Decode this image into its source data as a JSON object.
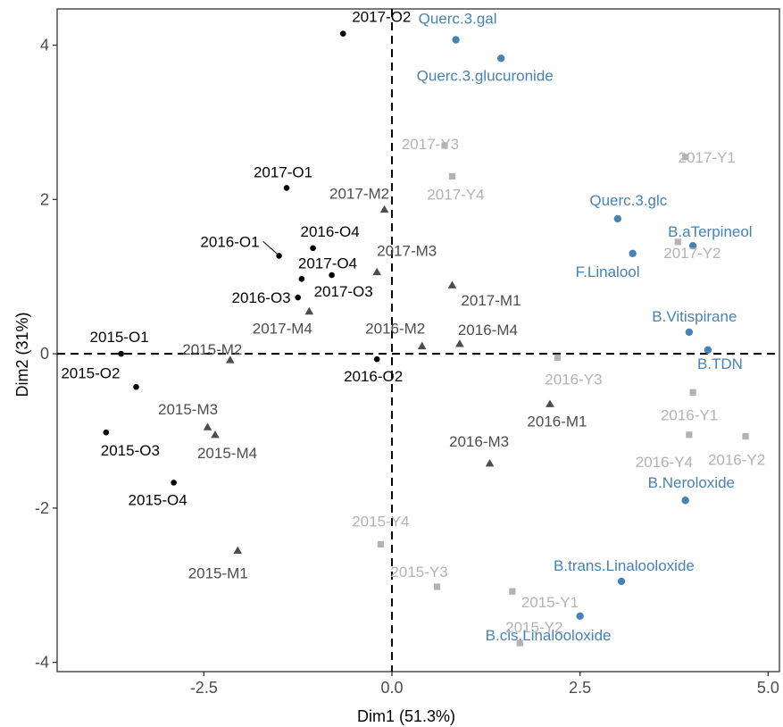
{
  "chart_data": {
    "type": "scatter",
    "title": "",
    "xlabel": "Dim1 (51.3%)",
    "ylabel": "Dim2 (31%)",
    "xlim": [
      -4.45,
      5.15
    ],
    "ylim": [
      -4.12,
      4.47
    ],
    "xticks": [
      -2.5,
      0,
      2.5,
      5
    ],
    "xtick_labels": [
      "-2.5",
      "0.0",
      "2.5",
      "5.0"
    ],
    "yticks": [
      -4,
      -2,
      0,
      2,
      4
    ],
    "ytick_labels": [
      "-4",
      "-2",
      "0",
      "2",
      "4"
    ],
    "reference_lines": {
      "x": 0,
      "y": 0,
      "style": "dashed"
    },
    "grid": false,
    "colors": {
      "O": "#000000",
      "M": "#4d4d4d",
      "Y": "#b3b3b3",
      "var": "#4682b4"
    },
    "series": [
      {
        "group": "O",
        "marker": "circle",
        "points": [
          {
            "label": "2017-O2",
            "x": -0.65,
            "y": 4.15
          },
          {
            "label": "2017-O1",
            "x": -1.4,
            "y": 2.15
          },
          {
            "label": "2016-O1",
            "x": -1.5,
            "y": 1.27
          },
          {
            "label": "2016-O4",
            "x": -1.05,
            "y": 1.37
          },
          {
            "label": "2017-O4",
            "x": -1.2,
            "y": 0.97
          },
          {
            "label": "2017-O3",
            "x": -0.8,
            "y": 1.02
          },
          {
            "label": "2016-O3",
            "x": -1.25,
            "y": 0.73
          },
          {
            "label": "2016-O2",
            "x": -0.2,
            "y": -0.07
          },
          {
            "label": "2015-O1",
            "x": -3.6,
            "y": 0.0
          },
          {
            "label": "2015-O2",
            "x": -3.4,
            "y": -0.43
          },
          {
            "label": "2015-O3",
            "x": -3.8,
            "y": -1.02
          },
          {
            "label": "2015-O4",
            "x": -2.9,
            "y": -1.67
          }
        ]
      },
      {
        "group": "M",
        "marker": "triangle",
        "points": [
          {
            "label": "2017-M2",
            "x": -0.1,
            "y": 1.87
          },
          {
            "label": "2017-M3",
            "x": -0.2,
            "y": 1.06
          },
          {
            "label": "2017-M1",
            "x": 0.8,
            "y": 0.89
          },
          {
            "label": "2017-M4",
            "x": -1.1,
            "y": 0.55
          },
          {
            "label": "2016-M2",
            "x": 0.4,
            "y": 0.1
          },
          {
            "label": "2016-M4",
            "x": 0.9,
            "y": 0.13
          },
          {
            "label": "2015-M2",
            "x": -2.15,
            "y": -0.08
          },
          {
            "label": "2016-M1",
            "x": 2.1,
            "y": -0.65
          },
          {
            "label": "2015-M3",
            "x": -2.45,
            "y": -0.95
          },
          {
            "label": "2015-M4",
            "x": -2.35,
            "y": -1.05
          },
          {
            "label": "2016-M3",
            "x": 1.3,
            "y": -1.42
          },
          {
            "label": "2015-M1",
            "x": -2.05,
            "y": -2.55
          }
        ]
      },
      {
        "group": "Y",
        "marker": "square",
        "points": [
          {
            "label": "2017-Y3",
            "x": 0.7,
            "y": 2.7
          },
          {
            "label": "2017-Y4",
            "x": 0.8,
            "y": 2.3
          },
          {
            "label": "2017-Y1",
            "x": 3.9,
            "y": 2.55
          },
          {
            "label": "2017-Y2",
            "x": 3.8,
            "y": 1.45
          },
          {
            "label": "2016-Y3",
            "x": 2.2,
            "y": -0.05
          },
          {
            "label": "2016-Y1",
            "x": 4.0,
            "y": -0.5
          },
          {
            "label": "2016-Y4",
            "x": 3.95,
            "y": -1.05
          },
          {
            "label": "2016-Y2",
            "x": 4.7,
            "y": -1.07
          },
          {
            "label": "2015-Y4",
            "x": -0.15,
            "y": -2.47
          },
          {
            "label": "2015-Y3",
            "x": 0.6,
            "y": -3.02
          },
          {
            "label": "2015-Y1",
            "x": 1.6,
            "y": -3.08
          },
          {
            "label": "2015-Y2",
            "x": 1.7,
            "y": -3.75
          }
        ]
      },
      {
        "group": "variables",
        "marker": "circle",
        "points": [
          {
            "label": "Querc.3.gal",
            "x": 0.85,
            "y": 4.07
          },
          {
            "label": "Querc.3.glucuronide",
            "x": 1.45,
            "y": 3.83
          },
          {
            "label": "Querc.3.glc",
            "x": 3.0,
            "y": 1.75
          },
          {
            "label": "B.aTerpineol",
            "x": 4.0,
            "y": 1.4
          },
          {
            "label": "F.Linalool",
            "x": 3.2,
            "y": 1.3
          },
          {
            "label": "B.Vitispirane",
            "x": 3.95,
            "y": 0.28
          },
          {
            "label": "B.TDN",
            "x": 4.2,
            "y": 0.05
          },
          {
            "label": "B.Neroloxide",
            "x": 3.9,
            "y": -1.9
          },
          {
            "label": "B.trans.Linalooloxide",
            "x": 3.05,
            "y": -2.95
          },
          {
            "label": "B.cis.Linalooloxide",
            "x": 2.5,
            "y": -3.4
          }
        ]
      }
    ]
  }
}
